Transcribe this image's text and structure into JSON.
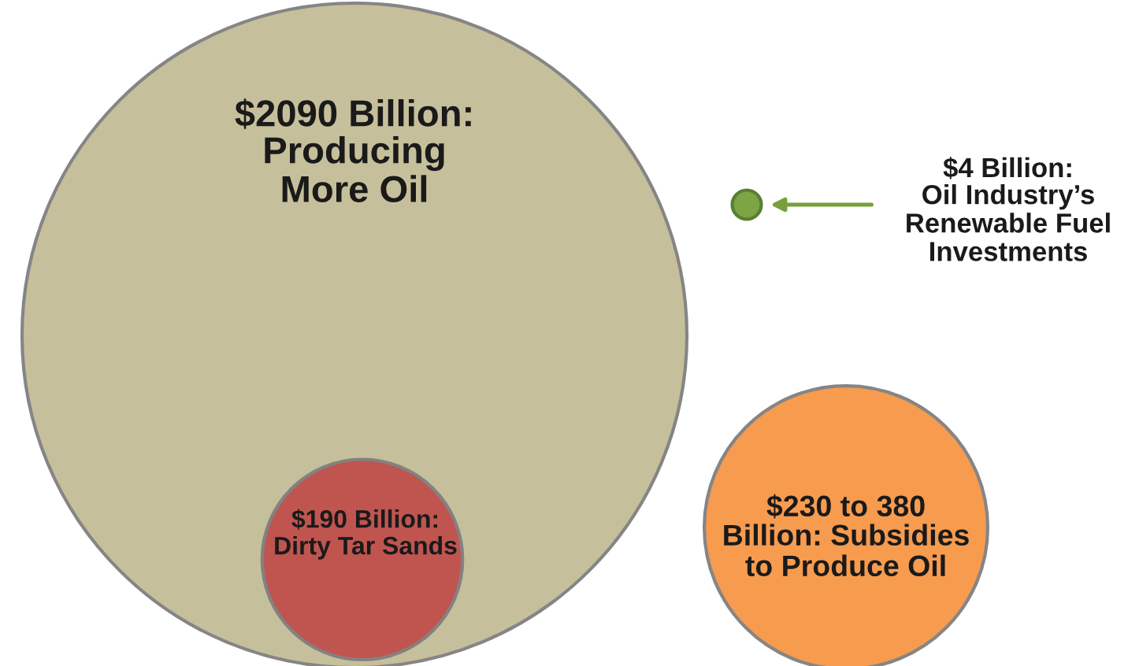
{
  "chart_data": {
    "type": "other",
    "categories": [
      "Producing\nMore Oil",
      "Dirty Tar Sands",
      "Oil Industry’s\nRenewable Fuel\nInvestments",
      "Billion: Subsidies\nto Produce Oil"
    ],
    "value_labels": [
      "$2090 Billion:",
      "$190 Billion:",
      "$4 Billion:",
      "$230 to 380"
    ],
    "values": [
      2090,
      190,
      4,
      380
    ],
    "colors": [
      "#c4bc96",
      "#c0504d",
      "#77a03c",
      "#f79646"
    ]
  }
}
